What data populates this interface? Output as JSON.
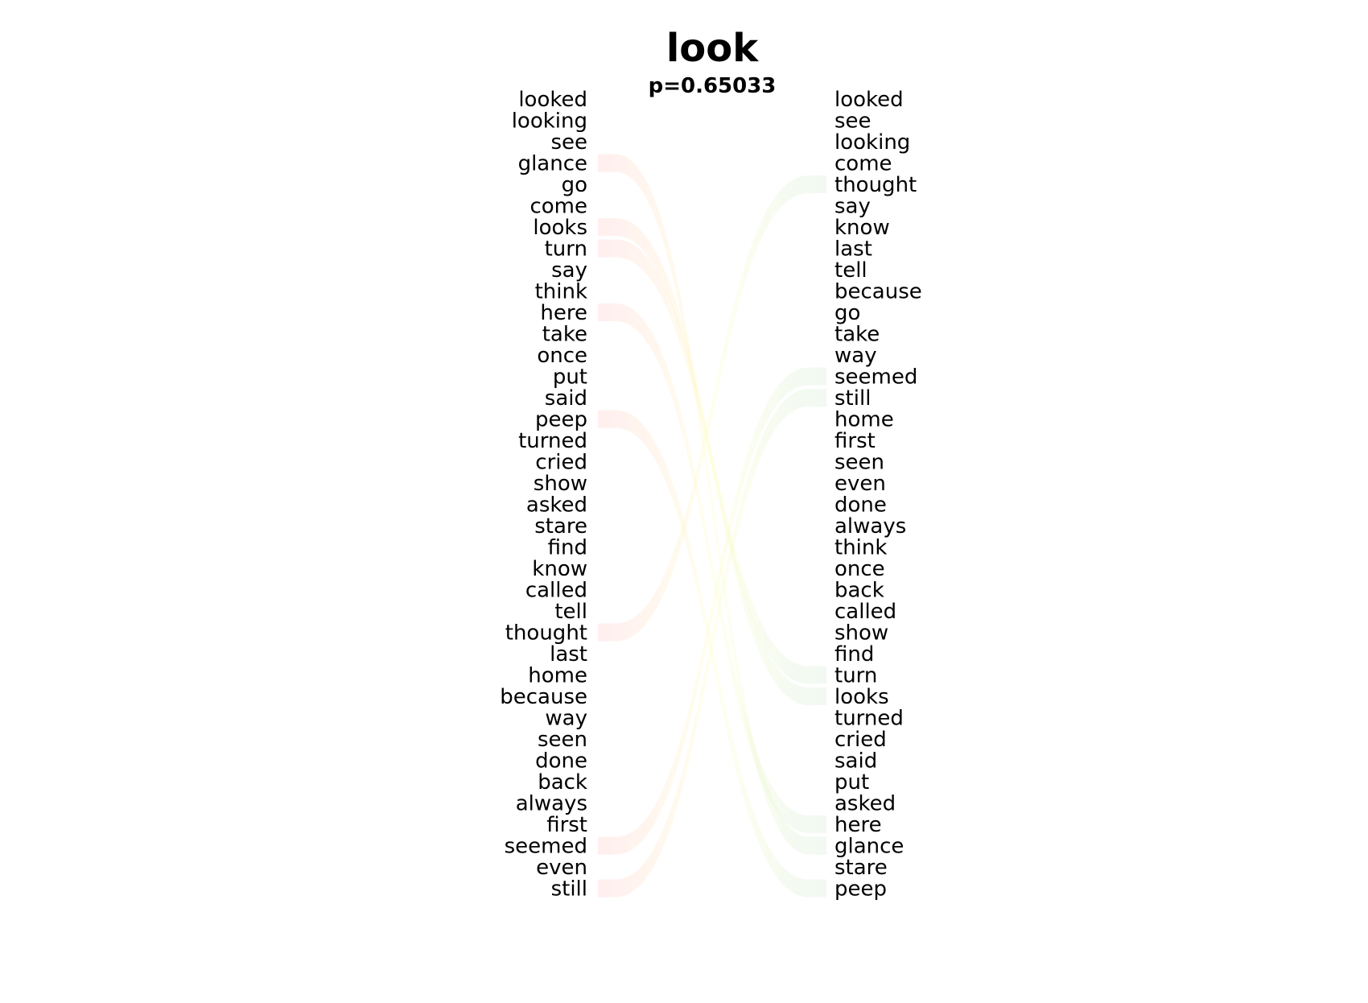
{
  "chart_data": {
    "type": "slope",
    "title": "look",
    "subtitle": "p=0.65033",
    "left_words": [
      "looked",
      "looking",
      "see",
      "glance",
      "go",
      "come",
      "looks",
      "turn",
      "say",
      "think",
      "here",
      "take",
      "once",
      "put",
      "said",
      "peep",
      "turned",
      "cried",
      "show",
      "asked",
      "stare",
      "find",
      "know",
      "called",
      "tell",
      "thought",
      "last",
      "home",
      "because",
      "way",
      "seen",
      "done",
      "back",
      "always",
      "first",
      "seemed",
      "even",
      "still"
    ],
    "right_words": [
      "looked",
      "see",
      "looking",
      "come",
      "thought",
      "say",
      "know",
      "last",
      "tell",
      "because",
      "go",
      "take",
      "way",
      "seemed",
      "still",
      "home",
      "first",
      "seen",
      "even",
      "done",
      "always",
      "think",
      "once",
      "back",
      "called",
      "show",
      "find",
      "turn",
      "looks",
      "turned",
      "cried",
      "said",
      "put",
      "asked",
      "here",
      "glance",
      "stare",
      "peep"
    ],
    "highlighted_down": [
      "glance",
      "looks",
      "turn",
      "here",
      "peep"
    ],
    "highlighted_up": [
      "thought",
      "seemed",
      "still"
    ],
    "colors": {
      "down": "#ff9999",
      "up": "#a8d8b0",
      "mid": "#ffff99",
      "text": "#000000"
    }
  }
}
